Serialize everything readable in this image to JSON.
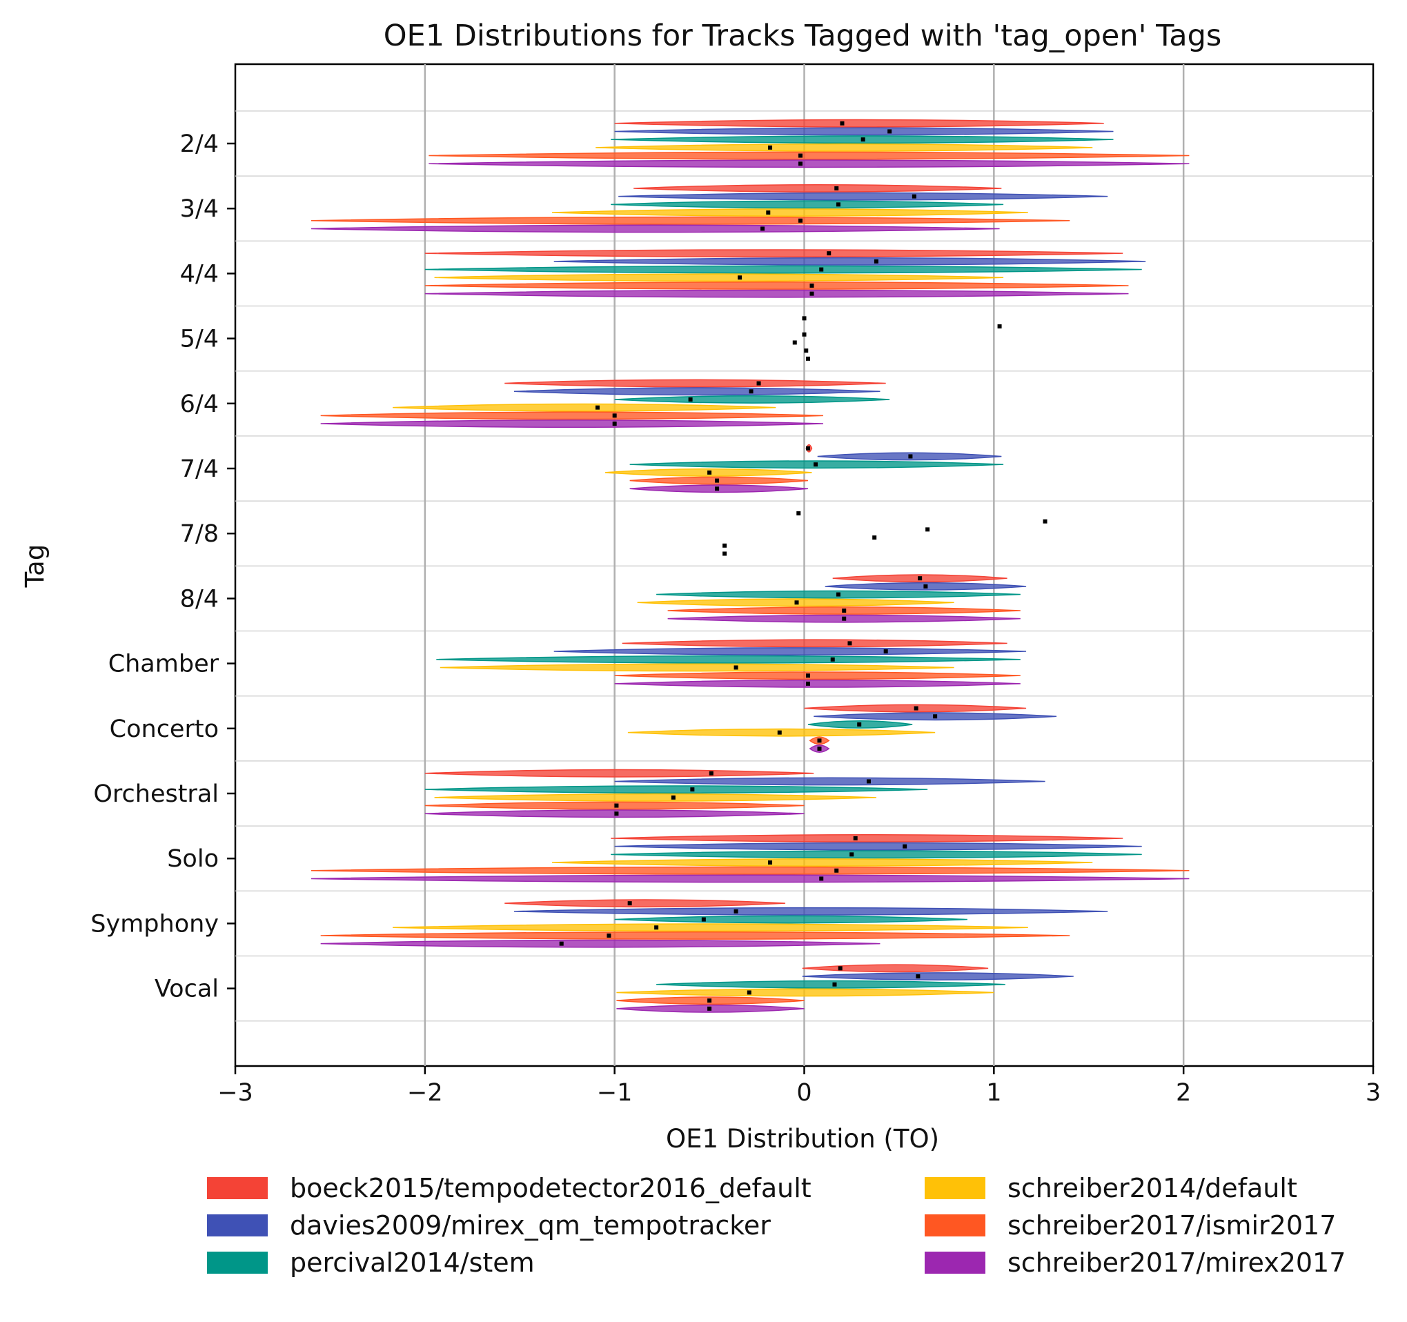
{
  "chart_data": {
    "type": "violin",
    "title": "OE1 Distributions for Tracks Tagged with 'tag_open' Tags",
    "xlabel": "OE1 Distribution (TO)",
    "ylabel": "Tag",
    "xlim": [
      -3,
      3
    ],
    "xticks": [
      -3,
      -2,
      -1,
      0,
      1,
      2,
      3
    ],
    "xtick_labels": [
      "−3",
      "−2",
      "−1",
      "0",
      "1",
      "2",
      "3"
    ],
    "grid": "vertical lines at x = -2, -1, 0, 1, 2",
    "legend_position": "bottom",
    "categories": [
      "2/4",
      "3/4",
      "4/4",
      "5/4",
      "6/4",
      "7/4",
      "7/8",
      "8/4",
      "Chamber",
      "Concerto",
      "Orchestral",
      "Solo",
      "Symphony",
      "Vocal"
    ],
    "series": [
      {
        "name": "boeck2015/tempodetector2016_default",
        "color": "#f44336",
        "ranges": [
          [
            -1.0,
            1.58
          ],
          [
            -0.9,
            1.04
          ],
          [
            -2.0,
            1.68
          ],
          null,
          [
            -1.58,
            0.43
          ],
          [
            0.01,
            0.04
          ],
          null,
          [
            0.15,
            1.07
          ],
          [
            -0.96,
            1.07
          ],
          [
            0.0,
            1.17
          ],
          [
            -2.0,
            0.05
          ],
          [
            -1.02,
            1.68
          ],
          [
            -1.58,
            -0.1
          ],
          [
            -0.01,
            0.97
          ]
        ],
        "medians": [
          0.2,
          0.17,
          0.13,
          0.0,
          -0.24,
          0.02,
          -0.03,
          0.61,
          0.24,
          0.59,
          -0.49,
          0.27,
          -0.92,
          0.19
        ]
      },
      {
        "name": "davies2009/mirex_qm_tempotracker",
        "color": "#3f51b5",
        "ranges": [
          [
            -1.0,
            1.63
          ],
          [
            -0.98,
            1.6
          ],
          [
            -1.32,
            1.8
          ],
          null,
          [
            -1.53,
            0.4
          ],
          [
            0.07,
            1.04
          ],
          null,
          [
            0.11,
            1.17
          ],
          [
            -1.32,
            1.17
          ],
          [
            0.05,
            1.33
          ],
          [
            -1.0,
            1.27
          ],
          [
            -1.0,
            1.78
          ],
          [
            -1.53,
            1.6
          ],
          [
            -0.01,
            1.42
          ]
        ],
        "medians": [
          0.45,
          0.58,
          0.38,
          1.03,
          -0.28,
          0.56,
          1.27,
          0.64,
          0.43,
          0.69,
          0.34,
          0.53,
          -0.36,
          0.6
        ]
      },
      {
        "name": "percival2014/stem",
        "color": "#009688",
        "ranges": [
          [
            -1.02,
            1.63
          ],
          [
            -1.02,
            1.05
          ],
          [
            -2.0,
            1.78
          ],
          null,
          [
            -1.0,
            0.45
          ],
          [
            -0.92,
            1.05
          ],
          null,
          [
            -0.78,
            1.14
          ],
          [
            -1.94,
            1.14
          ],
          [
            0.02,
            0.57
          ],
          [
            -2.0,
            0.65
          ],
          [
            -1.02,
            1.78
          ],
          [
            -1.0,
            0.86
          ],
          [
            -0.78,
            1.06
          ]
        ],
        "medians": [
          0.31,
          0.18,
          0.09,
          0.0,
          -0.6,
          0.06,
          0.65,
          0.18,
          0.15,
          0.29,
          -0.59,
          0.25,
          -0.53,
          0.16
        ]
      },
      {
        "name": "schreiber2014/default",
        "color": "#ffc107",
        "ranges": [
          [
            -1.1,
            1.52
          ],
          [
            -1.33,
            1.18
          ],
          [
            -1.95,
            1.05
          ],
          null,
          [
            -2.17,
            -0.15
          ],
          [
            -1.05,
            0.04
          ],
          null,
          [
            -0.88,
            0.79
          ],
          [
            -1.92,
            0.79
          ],
          [
            -0.93,
            0.69
          ],
          [
            -1.95,
            0.38
          ],
          [
            -1.33,
            1.52
          ],
          [
            -2.17,
            1.18
          ],
          [
            -0.99,
            1.0
          ]
        ],
        "medians": [
          -0.18,
          -0.19,
          -0.34,
          -0.05,
          -1.09,
          -0.5,
          0.37,
          -0.04,
          -0.36,
          -0.13,
          -0.69,
          -0.18,
          -0.78,
          -0.29
        ]
      },
      {
        "name": "schreiber2017/ismir2017",
        "color": "#ff5722",
        "ranges": [
          [
            -1.98,
            2.03
          ],
          [
            -2.6,
            1.4
          ],
          [
            -2.0,
            1.71
          ],
          null,
          [
            -2.55,
            0.1
          ],
          [
            -0.92,
            0.02
          ],
          null,
          [
            -0.72,
            1.14
          ],
          [
            -1.0,
            1.14
          ],
          [
            0.03,
            0.13
          ],
          [
            -2.0,
            0.0
          ],
          [
            -2.6,
            2.03
          ],
          [
            -2.55,
            1.4
          ],
          [
            -0.99,
            0.0
          ]
        ],
        "medians": [
          -0.02,
          -0.02,
          0.04,
          0.01,
          -1.0,
          -0.46,
          -0.42,
          0.21,
          0.02,
          0.08,
          -0.99,
          0.17,
          -1.03,
          -0.5
        ]
      },
      {
        "name": "schreiber2017/mirex2017",
        "color": "#9c27b0",
        "ranges": [
          [
            -1.98,
            2.03
          ],
          [
            -2.6,
            1.03
          ],
          [
            -2.0,
            1.71
          ],
          null,
          [
            -2.55,
            0.1
          ],
          [
            -0.92,
            0.02
          ],
          null,
          [
            -0.72,
            1.14
          ],
          [
            -1.0,
            1.14
          ],
          [
            0.03,
            0.13
          ],
          [
            -2.0,
            0.0
          ],
          [
            -2.6,
            2.03
          ],
          [
            -2.55,
            0.4
          ],
          [
            -0.99,
            0.0
          ]
        ],
        "medians": [
          -0.02,
          -0.22,
          0.04,
          0.02,
          -1.0,
          -0.46,
          -0.42,
          0.21,
          0.02,
          0.08,
          -0.99,
          0.09,
          -1.28,
          -0.5
        ]
      }
    ]
  }
}
